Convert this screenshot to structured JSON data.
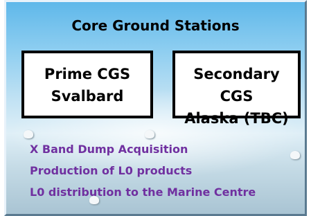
{
  "header": {
    "title": "Core Ground Stations"
  },
  "boxes": [
    {
      "lines": [
        "Prime CGS",
        "Svalbard"
      ]
    },
    {
      "lines": [
        "Secondary",
        "CGS",
        "Alaska (TBC)"
      ]
    }
  ],
  "items": [
    "X Band Dump Acquisition",
    "Production of L0 products",
    "L0 distribution to the Marine Centre"
  ]
}
